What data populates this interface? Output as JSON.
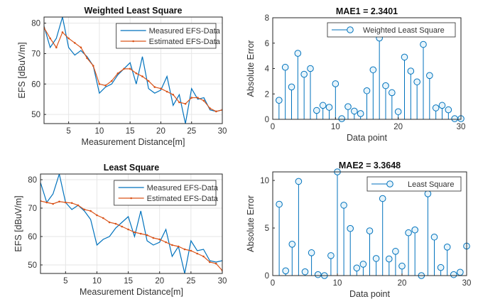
{
  "colors": {
    "measured": "#0072BD",
    "estimated": "#D95319",
    "stem": "#0072BD",
    "marker_fill": "#e6f4fb",
    "grid": "#e6e6e6",
    "axis": "#262626"
  },
  "chart_data": [
    {
      "id": "wls-fit",
      "type": "line",
      "title": "Weighted Least Square",
      "xlabel": "Measurement Distance[m]",
      "ylabel": "EFS [dBuV/m]",
      "xlim": [
        1,
        30
      ],
      "ylim": [
        47,
        82
      ],
      "xticks": [
        5,
        10,
        15,
        20,
        25,
        30
      ],
      "yticks": [
        50,
        60,
        70,
        80
      ],
      "grid": true,
      "legend_position": "top-right",
      "x": [
        1,
        2,
        3,
        4,
        5,
        6,
        7,
        8,
        9,
        10,
        11,
        12,
        13,
        14,
        15,
        16,
        17,
        18,
        19,
        20,
        21,
        22,
        23,
        24,
        25,
        26,
        27,
        28,
        29,
        30
      ],
      "series": [
        {
          "name": "Measured EFS-Data",
          "style": "line",
          "values": [
            79,
            72,
            75,
            82,
            72,
            69.5,
            71,
            69,
            66,
            57,
            59,
            60,
            63,
            65,
            67,
            60,
            69,
            58.5,
            57,
            58,
            62.5,
            53,
            56.5,
            47,
            58.5,
            55,
            55.5,
            51.5,
            51,
            51.5
          ]
        },
        {
          "name": "Estimated EFS-Data",
          "style": "line-dot",
          "values": [
            78.5,
            75,
            72,
            77,
            75,
            73.5,
            72,
            68.5,
            66,
            60,
            59.5,
            61,
            63.5,
            65,
            65,
            63.5,
            62.5,
            61,
            59,
            58.5,
            57.5,
            56.5,
            54,
            53.5,
            55.5,
            55.5,
            54.5,
            52,
            51,
            51.5
          ]
        }
      ]
    },
    {
      "id": "mae1",
      "type": "stem",
      "title": "MAE1 = 2.3401",
      "xlabel": "Data point",
      "ylabel": "Absolute Error",
      "xlim": [
        0,
        30
      ],
      "ylim": [
        0,
        8
      ],
      "xticks": [
        0,
        10,
        20,
        30
      ],
      "yticks": [
        0,
        2,
        4,
        6,
        8
      ],
      "grid": false,
      "legend_position": "top-right",
      "x": [
        1,
        2,
        3,
        4,
        5,
        6,
        7,
        8,
        9,
        10,
        11,
        12,
        13,
        14,
        15,
        16,
        17,
        18,
        19,
        20,
        21,
        22,
        23,
        24,
        25,
        26,
        27,
        28,
        29,
        30
      ],
      "series": [
        {
          "name": "Weighted Least Square",
          "values": [
            1.5,
            4.1,
            2.55,
            5.2,
            3.55,
            4.0,
            0.7,
            1.1,
            0.95,
            2.8,
            0.05,
            1.0,
            0.65,
            0.45,
            2.25,
            3.9,
            6.4,
            2.65,
            2.1,
            0.6,
            4.9,
            3.8,
            2.95,
            5.9,
            3.45,
            0.9,
            1.1,
            0.75,
            0.05,
            0.05
          ]
        }
      ]
    },
    {
      "id": "ls-fit",
      "type": "line",
      "title": "Least Square",
      "xlabel": "Measurement Distance[m]",
      "ylabel": "EFS [dBuV/m]",
      "xlim": [
        1,
        30
      ],
      "ylim": [
        47,
        82
      ],
      "xticks": [
        5,
        10,
        15,
        20,
        25,
        30
      ],
      "yticks": [
        50,
        60,
        70,
        80
      ],
      "grid": true,
      "legend_position": "top-right",
      "x": [
        1,
        2,
        3,
        4,
        5,
        6,
        7,
        8,
        9,
        10,
        11,
        12,
        13,
        14,
        15,
        16,
        17,
        18,
        19,
        20,
        21,
        22,
        23,
        24,
        25,
        26,
        27,
        28,
        29,
        30
      ],
      "series": [
        {
          "name": "Measured EFS-Data",
          "style": "line",
          "values": [
            79,
            72,
            75,
            82,
            72,
            69.5,
            71,
            69,
            66,
            57,
            59,
            60,
            63,
            65,
            67,
            60,
            69,
            58.5,
            57,
            58,
            62.5,
            53,
            56.5,
            47,
            58.5,
            55,
            55.5,
            51.5,
            51,
            51.5
          ]
        },
        {
          "name": "Estimated EFS-Data",
          "style": "line-dot",
          "values": [
            72.5,
            72,
            71.5,
            72.3,
            72,
            71.8,
            71,
            69.5,
            69,
            67.5,
            66.5,
            65,
            64.5,
            63.5,
            62.5,
            61.5,
            61,
            60.5,
            59.5,
            59,
            58,
            57,
            56.5,
            55.5,
            55,
            54,
            53,
            51,
            50.5,
            48
          ]
        }
      ]
    },
    {
      "id": "mae2",
      "type": "stem",
      "title": "MAE2 = 3.3648",
      "xlabel": "Data point",
      "ylabel": "Absolute Error",
      "xlim": [
        0,
        30
      ],
      "ylim": [
        0,
        10.9
      ],
      "xticks": [
        0,
        10,
        20,
        30
      ],
      "yticks": [
        0,
        5,
        10
      ],
      "grid": false,
      "legend_position": "top-right",
      "x": [
        1,
        2,
        3,
        4,
        5,
        6,
        7,
        8,
        9,
        10,
        11,
        12,
        13,
        14,
        15,
        16,
        17,
        18,
        19,
        20,
        21,
        22,
        23,
        24,
        25,
        26,
        27,
        28,
        29,
        30
      ],
      "series": [
        {
          "name": "Least Square",
          "values": [
            7.5,
            0.5,
            3.3,
            9.9,
            0.4,
            2.4,
            0.1,
            0.0,
            2.1,
            10.9,
            7.4,
            4.95,
            0.8,
            1.2,
            4.7,
            1.8,
            8.1,
            1.75,
            2.55,
            1.0,
            4.5,
            4.8,
            0.0,
            8.6,
            4.05,
            0.85,
            3.0,
            0.1,
            0.35,
            3.1
          ]
        }
      ]
    }
  ]
}
